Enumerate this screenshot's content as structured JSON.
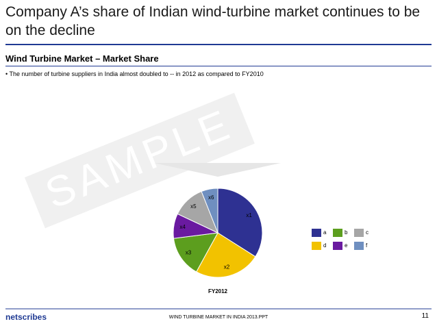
{
  "slide": {
    "title": "Company A’s share of Indian wind-turbine market continues to be on the decline",
    "subtitle": "Wind Turbine Market – Market Share",
    "bullet": "• The number of turbine suppliers in India almost doubled to --  in 2012 as compared to FY2010",
    "watermark": "SAMPLE",
    "footer": "WIND TURBINE  MARKET IN INDIA 2013.PPT",
    "page_number": "11",
    "logo": "netscribes"
  },
  "chart_data": {
    "type": "pie",
    "title": "FY2012",
    "categories": [
      "a",
      "d",
      "b",
      "e",
      "c",
      "f"
    ],
    "values": [
      34,
      24,
      15,
      9,
      12,
      6
    ],
    "slice_labels": [
      "x1",
      "x2",
      "x3",
      "x4",
      "x5",
      "x6"
    ],
    "colors": [
      "#2e3192",
      "#f2c200",
      "#5c9e1e",
      "#6a1aa0",
      "#a6a6a6",
      "#6f8fc0"
    ],
    "legend": "right"
  }
}
